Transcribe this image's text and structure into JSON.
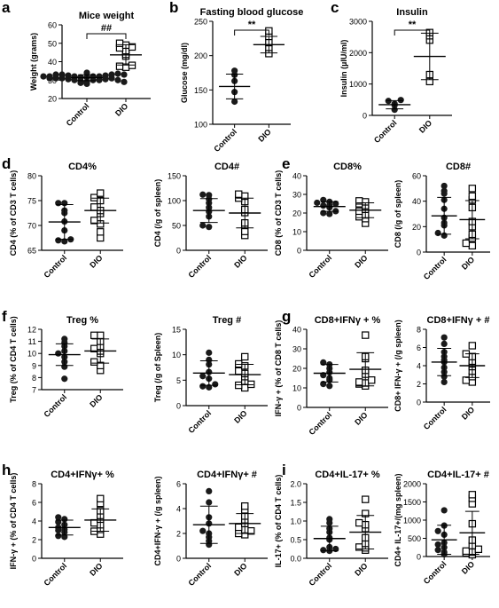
{
  "panel_letters": [
    "a",
    "b",
    "c",
    "d",
    "e",
    "f",
    "g",
    "h",
    "i"
  ],
  "group_labels": [
    "Control",
    "DIO"
  ],
  "colors": {
    "ink": "#000000",
    "marker_fill": "#1a1a1a",
    "background": "#ffffff"
  },
  "chart_data": [
    {
      "type": "scatter",
      "panel": "a",
      "title": "Mice weight",
      "ylabel": "Weight (grams)",
      "ylim": [
        20,
        60
      ],
      "yticks": [
        "20",
        "30",
        "40",
        "50",
        "60"
      ],
      "categories": [
        "Control",
        "DIO"
      ],
      "significance": "##",
      "series": [
        {
          "values": [
            28,
            28.5,
            29,
            29.5,
            30,
            30,
            30,
            30.5,
            30.5,
            31,
            31,
            31,
            31.5,
            31.5,
            32,
            32,
            32,
            32.5,
            32.5,
            33,
            33,
            33,
            33.5,
            34,
            30,
            31,
            32,
            29,
            33,
            32
          ],
          "marker": "circle",
          "mean": 31.3,
          "sd": 1.6
        },
        {
          "values": [
            37,
            37.5,
            38,
            43,
            44,
            46,
            47.5,
            48,
            49,
            50
          ],
          "marker": "square",
          "mean": 43.7,
          "sd": 5.5
        }
      ]
    },
    {
      "type": "scatter",
      "panel": "b",
      "title": "Fasting blood glucose",
      "ylabel": "Glucose (mg/dl)",
      "ylim": [
        100,
        250
      ],
      "yticks": [
        "100",
        "150",
        "200",
        "250"
      ],
      "categories": [
        "Control",
        "DIO"
      ],
      "significance": "**",
      "series": [
        {
          "values": [
            133,
            147,
            163,
            172,
            178
          ],
          "marker": "circle",
          "mean": 155,
          "sd": 18
        },
        {
          "values": [
            203,
            212,
            219,
            228,
            236
          ],
          "marker": "square",
          "mean": 216,
          "sd": 12
        }
      ]
    },
    {
      "type": "scatter",
      "panel": "c",
      "title": "Insulin",
      "ylabel": "Insulin (µIU/ml)",
      "ylim": [
        0,
        3000
      ],
      "yticks": [
        "0",
        "1000",
        "2000",
        "3000"
      ],
      "categories": [
        "Control",
        "DIO"
      ],
      "significance": "**",
      "series": [
        {
          "values": [
            180,
            330,
            370,
            460,
            490
          ],
          "marker": "circle",
          "mean": 340,
          "sd": 130
        },
        {
          "values": [
            1080,
            1300,
            2400,
            2540,
            2640
          ],
          "marker": "square",
          "mean": 1880,
          "sd": 740
        }
      ]
    },
    {
      "type": "scatter",
      "panel": "d",
      "title": "CD4%",
      "ylabel": "CD4 (% of CD3 T cells)",
      "ylim": [
        65,
        80
      ],
      "yticks": [
        "65",
        "70",
        "75",
        "80"
      ],
      "categories": [
        "Control",
        "DIO"
      ],
      "series": [
        {
          "values": [
            66.8,
            67,
            67.2,
            69,
            70.8,
            72.5,
            73,
            74.5,
            74.5
          ],
          "marker": "circle",
          "mean": 70.7,
          "sd": 3.5
        },
        {
          "values": [
            67.5,
            68.7,
            70.3,
            71,
            72.4,
            73,
            73.7,
            75,
            75.6,
            76.5
          ],
          "marker": "square",
          "mean": 73,
          "sd": 2.5
        }
      ]
    },
    {
      "type": "scatter",
      "panel": "d",
      "title": "CD4#",
      "ylabel": "CD4 (/g of spleen)",
      "ylim": [
        0,
        150
      ],
      "yticks": [
        "0",
        "50",
        "100",
        "150"
      ],
      "categories": [
        "Control",
        "DIO"
      ],
      "series": [
        {
          "values": [
            47,
            50,
            68,
            78,
            86,
            95,
            103,
            111,
            112
          ],
          "marker": "circle",
          "mean": 80,
          "sd": 24
        },
        {
          "values": [
            30,
            38,
            50,
            55,
            76,
            82,
            98,
            105,
            109,
            113
          ],
          "marker": "square",
          "mean": 75,
          "sd": 30
        }
      ]
    },
    {
      "type": "scatter",
      "panel": "e",
      "title": "CD8%",
      "ylabel": "CD8 (% of CD3 T cells)",
      "ylim": [
        0,
        40
      ],
      "yticks": [
        "0",
        "10",
        "20",
        "30",
        "40"
      ],
      "categories": [
        "Control",
        "DIO"
      ],
      "series": [
        {
          "values": [
            19.5,
            20,
            21,
            23,
            24,
            24,
            25,
            25.5,
            26,
            27
          ],
          "marker": "circle",
          "mean": 23.5,
          "sd": 2.6
        },
        {
          "values": [
            14.5,
            17,
            18,
            19,
            21,
            22,
            24,
            25,
            26,
            26.5
          ],
          "marker": "square",
          "mean": 21.5,
          "sd": 4
        }
      ]
    },
    {
      "type": "scatter",
      "panel": "e",
      "title": "CD8#",
      "ylabel": "CD8 (/g of spleen)",
      "ylim": [
        0,
        60
      ],
      "yticks": [
        "0",
        "20",
        "40",
        "60"
      ],
      "categories": [
        "Control",
        "DIO"
      ],
      "series": [
        {
          "values": [
            13,
            15,
            21,
            23,
            27,
            34,
            41,
            46,
            48,
            52
          ],
          "marker": "circle",
          "mean": 28.5,
          "sd": 14.5
        },
        {
          "values": [
            5,
            7,
            11,
            14,
            20,
            24,
            35,
            41,
            44,
            50
          ],
          "marker": "square",
          "mean": 25.5,
          "sd": 15
        }
      ]
    },
    {
      "type": "scatter",
      "panel": "f",
      "title": "Treg %",
      "ylabel": "Treg (% of CD4 T cells)",
      "ylim": [
        7,
        12
      ],
      "yticks": [
        "7",
        "8",
        "9",
        "10",
        "11",
        "12"
      ],
      "categories": [
        "Control",
        "DIO"
      ],
      "series": [
        {
          "values": [
            7.9,
            8.9,
            9.3,
            9.7,
            10,
            10.2,
            10.6,
            10.9,
            11.2
          ],
          "marker": "circle",
          "mean": 9.9,
          "sd": 0.9
        },
        {
          "values": [
            8.6,
            9,
            9.3,
            10,
            10.2,
            10.4,
            10.6,
            11,
            11.5,
            11.5
          ],
          "marker": "square",
          "mean": 10.2,
          "sd": 1
        }
      ]
    },
    {
      "type": "scatter",
      "panel": "f",
      "title": "Treg #",
      "ylabel": "Treg (/g of Spleen)",
      "ylim": [
        0,
        15
      ],
      "yticks": [
        "0",
        "5",
        "10",
        "15"
      ],
      "categories": [
        "Control",
        "DIO"
      ],
      "series": [
        {
          "values": [
            3.6,
            3.8,
            4.2,
            5.3,
            5.8,
            6.6,
            8.1,
            9,
            10.4
          ],
          "marker": "circle",
          "mean": 6.4,
          "sd": 2.4
        },
        {
          "values": [
            3.5,
            4,
            4.2,
            4.8,
            5.7,
            6.3,
            6.8,
            7.8,
            8.2,
            9.6
          ],
          "marker": "square",
          "mean": 6.1,
          "sd": 2
        }
      ]
    },
    {
      "type": "scatter",
      "panel": "g",
      "title": "CD8+IFNγ + %",
      "ylabel": "IFN-γ + (% of CD8 T cells)",
      "ylim": [
        0,
        40
      ],
      "yticks": [
        "0",
        "10",
        "20",
        "30",
        "40"
      ],
      "categories": [
        "Control",
        "DIO"
      ],
      "series": [
        {
          "values": [
            11,
            12,
            14,
            15,
            16.5,
            18,
            20,
            22,
            23
          ],
          "marker": "circle",
          "mean": 17.5,
          "sd": 4.5
        },
        {
          "values": [
            11,
            12,
            12.5,
            13,
            14,
            17,
            19,
            25,
            26,
            37
          ],
          "marker": "square",
          "mean": 19.5,
          "sd": 8.5
        }
      ]
    },
    {
      "type": "scatter",
      "panel": "g",
      "title": "CD8+IFNγ + #",
      "ylabel": "CD8+ IFN-γ + (/g spleen)",
      "ylim": [
        0,
        8
      ],
      "yticks": [
        "0",
        "2",
        "4",
        "6",
        "8"
      ],
      "categories": [
        "Control",
        "DIO"
      ],
      "series": [
        {
          "values": [
            2.2,
            2.8,
            3.3,
            3.8,
            4.4,
            4.6,
            5,
            5.5,
            6.4,
            7.1
          ],
          "marker": "circle",
          "mean": 4.4,
          "sd": 1.5
        },
        {
          "values": [
            2.2,
            2.4,
            2.8,
            3.4,
            3.9,
            4.2,
            4.5,
            5,
            5.3,
            6.2
          ],
          "marker": "square",
          "mean": 4,
          "sd": 1.3
        }
      ]
    },
    {
      "type": "scatter",
      "panel": "h",
      "title": "CD4+IFNγ+ %",
      "ylabel": "IFN-γ + (% of CD4 T cells)",
      "ylim": [
        0,
        8
      ],
      "yticks": [
        "0",
        "2",
        "4",
        "6",
        "8"
      ],
      "categories": [
        "Control",
        "DIO"
      ],
      "series": [
        {
          "values": [
            2.3,
            2.4,
            2.8,
            3,
            3.1,
            3.3,
            3.6,
            3.9,
            4.2,
            4.4
          ],
          "marker": "circle",
          "mean": 3.3,
          "sd": 0.8
        },
        {
          "values": [
            2.6,
            2.9,
            3.1,
            3.6,
            3.8,
            4.2,
            4.6,
            5.1,
            5.9,
            6.4
          ],
          "marker": "square",
          "mean": 4.1,
          "sd": 1.2
        }
      ]
    },
    {
      "type": "scatter",
      "panel": "h",
      "title": "CD4+IFNγ+ #",
      "ylabel": "CD4+IFN-γ + (/g spleen)",
      "ylim": [
        0,
        6
      ],
      "yticks": [
        "0",
        "2",
        "4",
        "6"
      ],
      "categories": [
        "Control",
        "DIO"
      ],
      "series": [
        {
          "values": [
            1.1,
            1.4,
            1.7,
            2,
            2.2,
            2.8,
            3.3,
            4.5,
            5.4
          ],
          "marker": "circle",
          "mean": 2.7,
          "sd": 1.5
        },
        {
          "values": [
            1.9,
            2,
            2.2,
            2.3,
            2.5,
            2.8,
            3.1,
            3.4,
            3.9,
            4.2
          ],
          "marker": "square",
          "mean": 2.8,
          "sd": 0.8
        }
      ]
    },
    {
      "type": "scatter",
      "panel": "i",
      "title": "CD4+IL-17+ %",
      "ylabel": "IL-17+ (% of CD4 T cells)",
      "ylim": [
        0,
        2
      ],
      "yticks": [
        "0.0",
        "0.5",
        "1.0",
        "1.5",
        "2.0"
      ],
      "categories": [
        "Control",
        "DIO"
      ],
      "series": [
        {
          "values": [
            0.2,
            0.22,
            0.25,
            0.3,
            0.5,
            0.55,
            0.7,
            0.8,
            0.95,
            1.05
          ],
          "marker": "circle",
          "mean": 0.53,
          "sd": 0.33
        },
        {
          "values": [
            0.22,
            0.28,
            0.3,
            0.4,
            0.55,
            0.8,
            0.9,
            0.95,
            1.2,
            1.58
          ],
          "marker": "square",
          "mean": 0.7,
          "sd": 0.45
        }
      ]
    },
    {
      "type": "scatter",
      "panel": "i",
      "title": "CD4+IL-17+ #",
      "ylabel": "CD4+ IL-17+/(mg spleen)",
      "ylim": [
        0,
        2000
      ],
      "yticks": [
        "0",
        "500",
        "1000",
        "1500",
        "2000"
      ],
      "categories": [
        "Control",
        "DIO"
      ],
      "series": [
        {
          "values": [
            60,
            120,
            180,
            250,
            330,
            380,
            600,
            700,
            850,
            1270
          ],
          "marker": "circle",
          "mean": 460,
          "sd": 400
        },
        {
          "values": [
            50,
            100,
            120,
            150,
            200,
            300,
            450,
            900,
            1450,
            1600,
            1700
          ],
          "marker": "square",
          "mean": 650,
          "sd": 590
        }
      ]
    }
  ]
}
